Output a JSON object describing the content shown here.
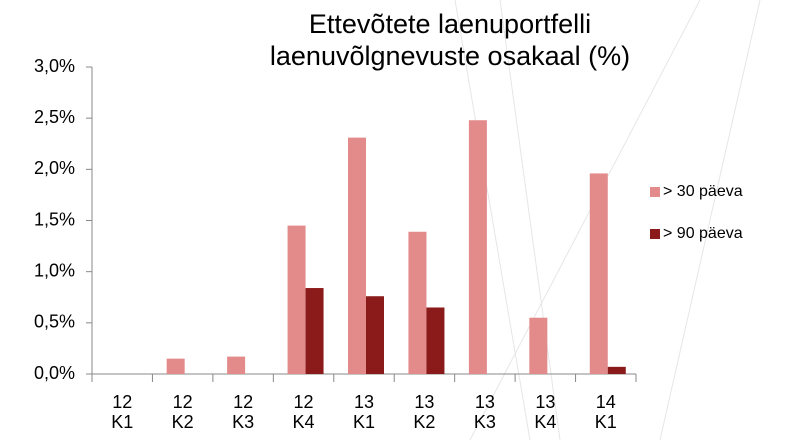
{
  "chart_data": {
    "type": "bar",
    "title": "Ettevõtete laenuportfelli laenuvõlgnevuste osakaal (%)",
    "categories": [
      "12 K1",
      "12 K2",
      "12 K3",
      "12 K4",
      "13 K1",
      "13 K2",
      "13 K3",
      "13 K4",
      "14 K1"
    ],
    "series": [
      {
        "name": "> 30 päeva",
        "color": "#e38b8b",
        "values": [
          0,
          0.15,
          0.17,
          1.45,
          2.31,
          1.39,
          2.48,
          0.55,
          1.96
        ]
      },
      {
        "name": "> 90 päeva",
        "color": "#8b1a1a",
        "values": [
          0,
          0,
          0,
          0.84,
          0.76,
          0.65,
          0,
          0,
          0.07
        ]
      }
    ],
    "ylim": [
      0,
      3
    ],
    "yticks": [
      {
        "value": 0,
        "label": "0,0%"
      },
      {
        "value": 0.5,
        "label": "0,5%"
      },
      {
        "value": 1,
        "label": "1,0%"
      },
      {
        "value": 1.5,
        "label": "1,5%"
      },
      {
        "value": 2,
        "label": "2,0%"
      },
      {
        "value": 2.5,
        "label": "2,5%"
      },
      {
        "value": 3,
        "label": "3,0%"
      }
    ],
    "grid": false,
    "legend": "right"
  }
}
